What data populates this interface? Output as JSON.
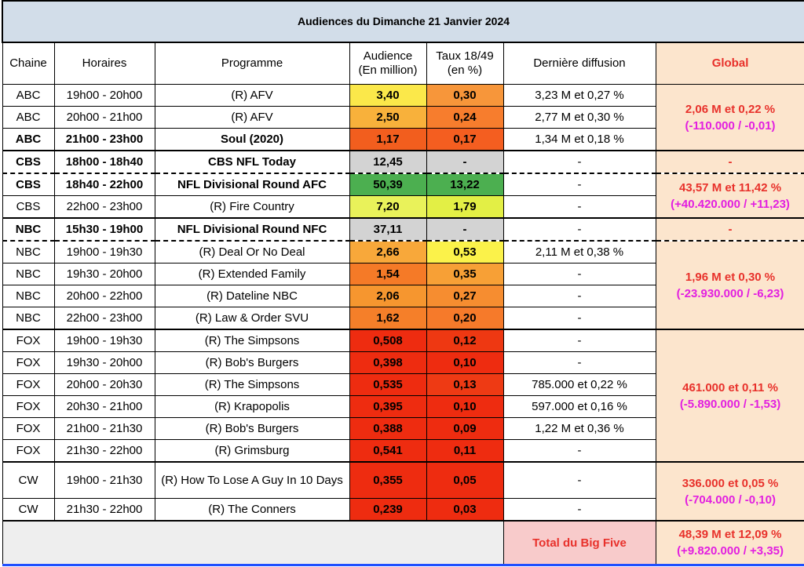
{
  "title": "Audiences du Dimanche 21 Janvier 2024",
  "headers": {
    "chaine": "Chaine",
    "horaires": "Horaires",
    "programme": "Programme",
    "audience_l1": "Audience",
    "audience_l2": "(En million)",
    "taux_l1": "Taux 18/49",
    "taux_l2": "(en %)",
    "derniere": "Dernière diffusion",
    "global": "Global"
  },
  "rows": [
    {
      "chaine": "ABC",
      "horaires": "19h00 - 20h00",
      "programme": "(R) AFV",
      "audience": "3,40",
      "taux": "0,30",
      "derniere": "3,23 M et 0,27 %"
    },
    {
      "chaine": "ABC",
      "horaires": "20h00 - 21h00",
      "programme": "(R) AFV",
      "audience": "2,50",
      "taux": "0,24",
      "derniere": "2,77 M et 0,30 %"
    },
    {
      "chaine": "ABC",
      "horaires": "21h00 - 23h00",
      "programme": "Soul (2020)",
      "audience": "1,17",
      "taux": "0,17",
      "derniere": "1,34 M et 0,18 %"
    },
    {
      "chaine": "CBS",
      "horaires": "18h00 - 18h40",
      "programme": "CBS NFL Today",
      "audience": "12,45",
      "taux": "-",
      "derniere": "-"
    },
    {
      "chaine": "CBS",
      "horaires": "18h40 - 22h00",
      "programme": "NFL Divisional Round AFC",
      "audience": "50,39",
      "taux": "13,22",
      "derniere": "-"
    },
    {
      "chaine": "CBS",
      "horaires": "22h00 - 23h00",
      "programme": "(R) Fire Country",
      "audience": "7,20",
      "taux": "1,79",
      "derniere": "-"
    },
    {
      "chaine": "NBC",
      "horaires": "15h30 - 19h00",
      "programme": "NFL Divisional Round NFC",
      "audience": "37,11",
      "taux": "-",
      "derniere": "-"
    },
    {
      "chaine": "NBC",
      "horaires": "19h00 - 19h30",
      "programme": "(R) Deal Or No Deal",
      "audience": "2,66",
      "taux": "0,53",
      "derniere": "2,11 M et 0,38 %"
    },
    {
      "chaine": "NBC",
      "horaires": "19h30 - 20h00",
      "programme": "(R) Extended Family",
      "audience": "1,54",
      "taux": "0,35",
      "derniere": "-"
    },
    {
      "chaine": "NBC",
      "horaires": "20h00 - 22h00",
      "programme": "(R) Dateline NBC",
      "audience": "2,06",
      "taux": "0,27",
      "derniere": "-"
    },
    {
      "chaine": "NBC",
      "horaires": "22h00 - 23h00",
      "programme": "(R) Law & Order SVU",
      "audience": "1,62",
      "taux": "0,20",
      "derniere": "-"
    },
    {
      "chaine": "FOX",
      "horaires": "19h00 - 19h30",
      "programme": "(R) The Simpsons",
      "audience": "0,508",
      "taux": "0,12",
      "derniere": "-"
    },
    {
      "chaine": "FOX",
      "horaires": "19h30 - 20h00",
      "programme": "(R) Bob's Burgers",
      "audience": "0,398",
      "taux": "0,10",
      "derniere": "-"
    },
    {
      "chaine": "FOX",
      "horaires": "20h00 - 20h30",
      "programme": "(R) The Simpsons",
      "audience": "0,535",
      "taux": "0,13",
      "derniere": "785.000 et 0,22 %"
    },
    {
      "chaine": "FOX",
      "horaires": "20h30 - 21h00",
      "programme": "(R) Krapopolis",
      "audience": "0,395",
      "taux": "0,10",
      "derniere": "597.000 et 0,16 %"
    },
    {
      "chaine": "FOX",
      "horaires": "21h00 - 21h30",
      "programme": "(R) Bob's Burgers",
      "audience": "0,388",
      "taux": "0,09",
      "derniere": "1,22 M et 0,36 %"
    },
    {
      "chaine": "FOX",
      "horaires": "21h30 - 22h00",
      "programme": "(R) Grimsburg",
      "audience": "0,541",
      "taux": "0,11",
      "derniere": "-"
    },
    {
      "chaine": "CW",
      "horaires": "19h00 - 21h30",
      "programme": "(R) How To Lose A Guy In 10 Days",
      "audience": "0,355",
      "taux": "0,05",
      "derniere": "-"
    },
    {
      "chaine": "CW",
      "horaires": "21h30 - 22h00",
      "programme": "(R) The Conners",
      "audience": "0,239",
      "taux": "0,03",
      "derniere": "-"
    }
  ],
  "global": {
    "abc": {
      "main": "2,06 M et 0,22 %",
      "diff": "(-110.000 / -0,01)"
    },
    "cbs_today": {
      "main": "-"
    },
    "cbs": {
      "main": "43,57 M et 11,42 %",
      "diff": "(+40.420.000 / +11,23)"
    },
    "nbc_nfc": {
      "main": "-"
    },
    "nbc": {
      "main": "1,96 M et 0,30 %",
      "diff": "(-23.930.000 / -6,23)"
    },
    "fox": {
      "main": "461.000 et 0,11 %",
      "diff": "(-5.890.000 / -1,53)"
    },
    "cw": {
      "main": "336.000 et 0,05 %",
      "diff": "(-704.000 / -0,10)"
    }
  },
  "total": {
    "label": "Total du Big Five",
    "value_l1": "48,39 M et 12,09 %",
    "value_l2": "(+9.820.000 / +3,35)"
  },
  "colors": {
    "rows_audience": [
      "#fbe84a",
      "#f8b13b",
      "#f25e1e",
      "#d3d3d3",
      "#4caf50",
      "#e9f25a",
      "#d3d3d3",
      "#f8a83a",
      "#f57a27",
      "#f6962f",
      "#f57f29",
      "#ee2c10",
      "#ee2c10",
      "#ee2c10",
      "#ee2c10",
      "#ee2c10",
      "#ee2c10",
      "#ee2c10",
      "#ee2c10"
    ],
    "rows_taux": [
      "#f7963a",
      "#f77d2d",
      "#f45e20",
      "#d3d3d3",
      "#4caf50",
      "#e3ef45",
      "#d3d3d3",
      "#fbf24a",
      "#f7a036",
      "#f68d30",
      "#f67a2a",
      "#ee3812",
      "#ee2c10",
      "#ee3a14",
      "#ee2c10",
      "#ee2c10",
      "#ee2c10",
      "#ee2c10",
      "#ee2c10"
    ]
  }
}
